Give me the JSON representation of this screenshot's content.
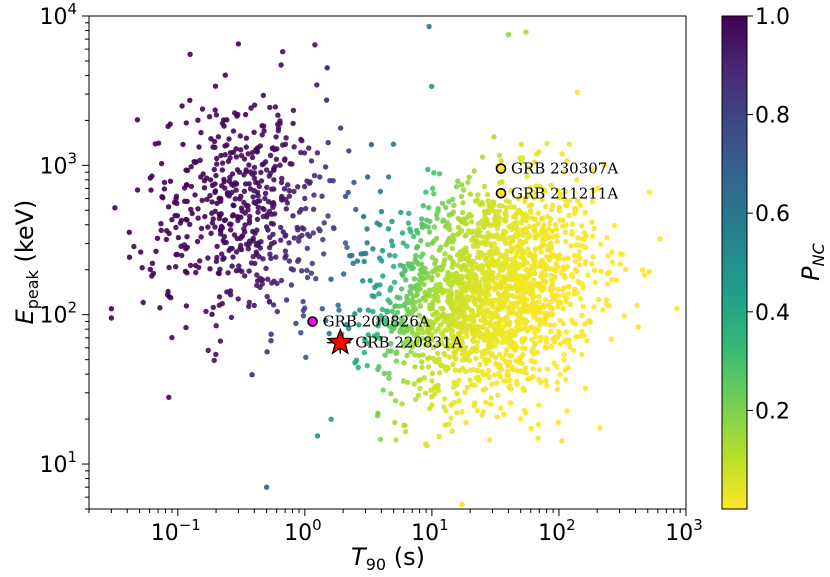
{
  "chart_data": {
    "type": "scatter",
    "title": "",
    "xlabel": {
      "base": "T",
      "sub": "90",
      "unit": " (s)"
    },
    "ylabel": {
      "base": "E",
      "sub": "peak",
      "unit": " (keV)"
    },
    "xscale": "log",
    "yscale": "log",
    "xlim": [
      0.02,
      1000
    ],
    "ylim": [
      5,
      10000
    ],
    "x_ticks": [
      {
        "value": 0.1,
        "base": "10",
        "exp": "−1"
      },
      {
        "value": 1,
        "base": "10",
        "exp": "0"
      },
      {
        "value": 10,
        "base": "10",
        "exp": "1"
      },
      {
        "value": 100,
        "base": "10",
        "exp": "2"
      },
      {
        "value": 1000,
        "base": "10",
        "exp": "3"
      }
    ],
    "y_ticks": [
      {
        "value": 10,
        "base": "10",
        "exp": "1"
      },
      {
        "value": 100,
        "base": "10",
        "exp": "2"
      },
      {
        "value": 1000,
        "base": "10",
        "exp": "3"
      },
      {
        "value": 10000,
        "base": "10",
        "exp": "4"
      }
    ],
    "colorbar": {
      "label": {
        "base": "P",
        "sub": "NC"
      },
      "range": [
        0,
        1
      ],
      "ticks": [
        {
          "value": 0.2,
          "label": "0.2"
        },
        {
          "value": 0.4,
          "label": "0.4"
        },
        {
          "value": 0.6,
          "label": "0.6"
        },
        {
          "value": 0.8,
          "label": "0.8"
        },
        {
          "value": 1.0,
          "label": "1.0"
        }
      ],
      "colormap": "viridis_r",
      "stops": [
        "#fde725",
        "#b5de2b",
        "#6ece58",
        "#35b779",
        "#1f9e89",
        "#26828e",
        "#31688e",
        "#3e4989",
        "#482878",
        "#440154"
      ]
    },
    "population": {
      "short_cluster": {
        "logx_mean": -0.45,
        "logx_sd": 0.4,
        "logy_mean": 2.7,
        "logy_sd": 0.38,
        "count": 560
      },
      "long_cluster": {
        "logx_mean": 1.45,
        "logx_sd": 0.42,
        "logy_mean": 2.15,
        "logy_sd": 0.36,
        "count": 1900
      },
      "outliers": [
        {
          "x": 0.03,
          "y": 95
        },
        {
          "x": 0.032,
          "y": 520
        },
        {
          "x": 0.085,
          "y": 28
        },
        {
          "x": 0.5,
          "y": 7
        },
        {
          "x": 9.5,
          "y": 8500
        },
        {
          "x": 40,
          "y": 7500
        },
        {
          "x": 55,
          "y": 7800
        },
        {
          "x": 0.3,
          "y": 6500
        },
        {
          "x": 0.65,
          "y": 4700
        },
        {
          "x": 1.5,
          "y": 4500
        },
        {
          "x": 850,
          "y": 110
        }
      ]
    },
    "highlights": [
      {
        "name": "GRB 230307A",
        "x": 35,
        "y": 950,
        "marker": "circle",
        "color": "#fde725"
      },
      {
        "name": "GRB 211211A",
        "x": 35,
        "y": 650,
        "marker": "circle",
        "color": "#fde725"
      },
      {
        "name": "GRB 200826A",
        "x": 1.15,
        "y": 90,
        "marker": "circle",
        "color": "#ff00ff"
      },
      {
        "name": "GRB 220831A",
        "x": 1.9,
        "y": 65,
        "marker": "star",
        "color": "#ff0000",
        "y_err_low": 10,
        "y_err_high": 10,
        "x_err_low": 0.4,
        "x_err_high": 0.4
      }
    ]
  }
}
